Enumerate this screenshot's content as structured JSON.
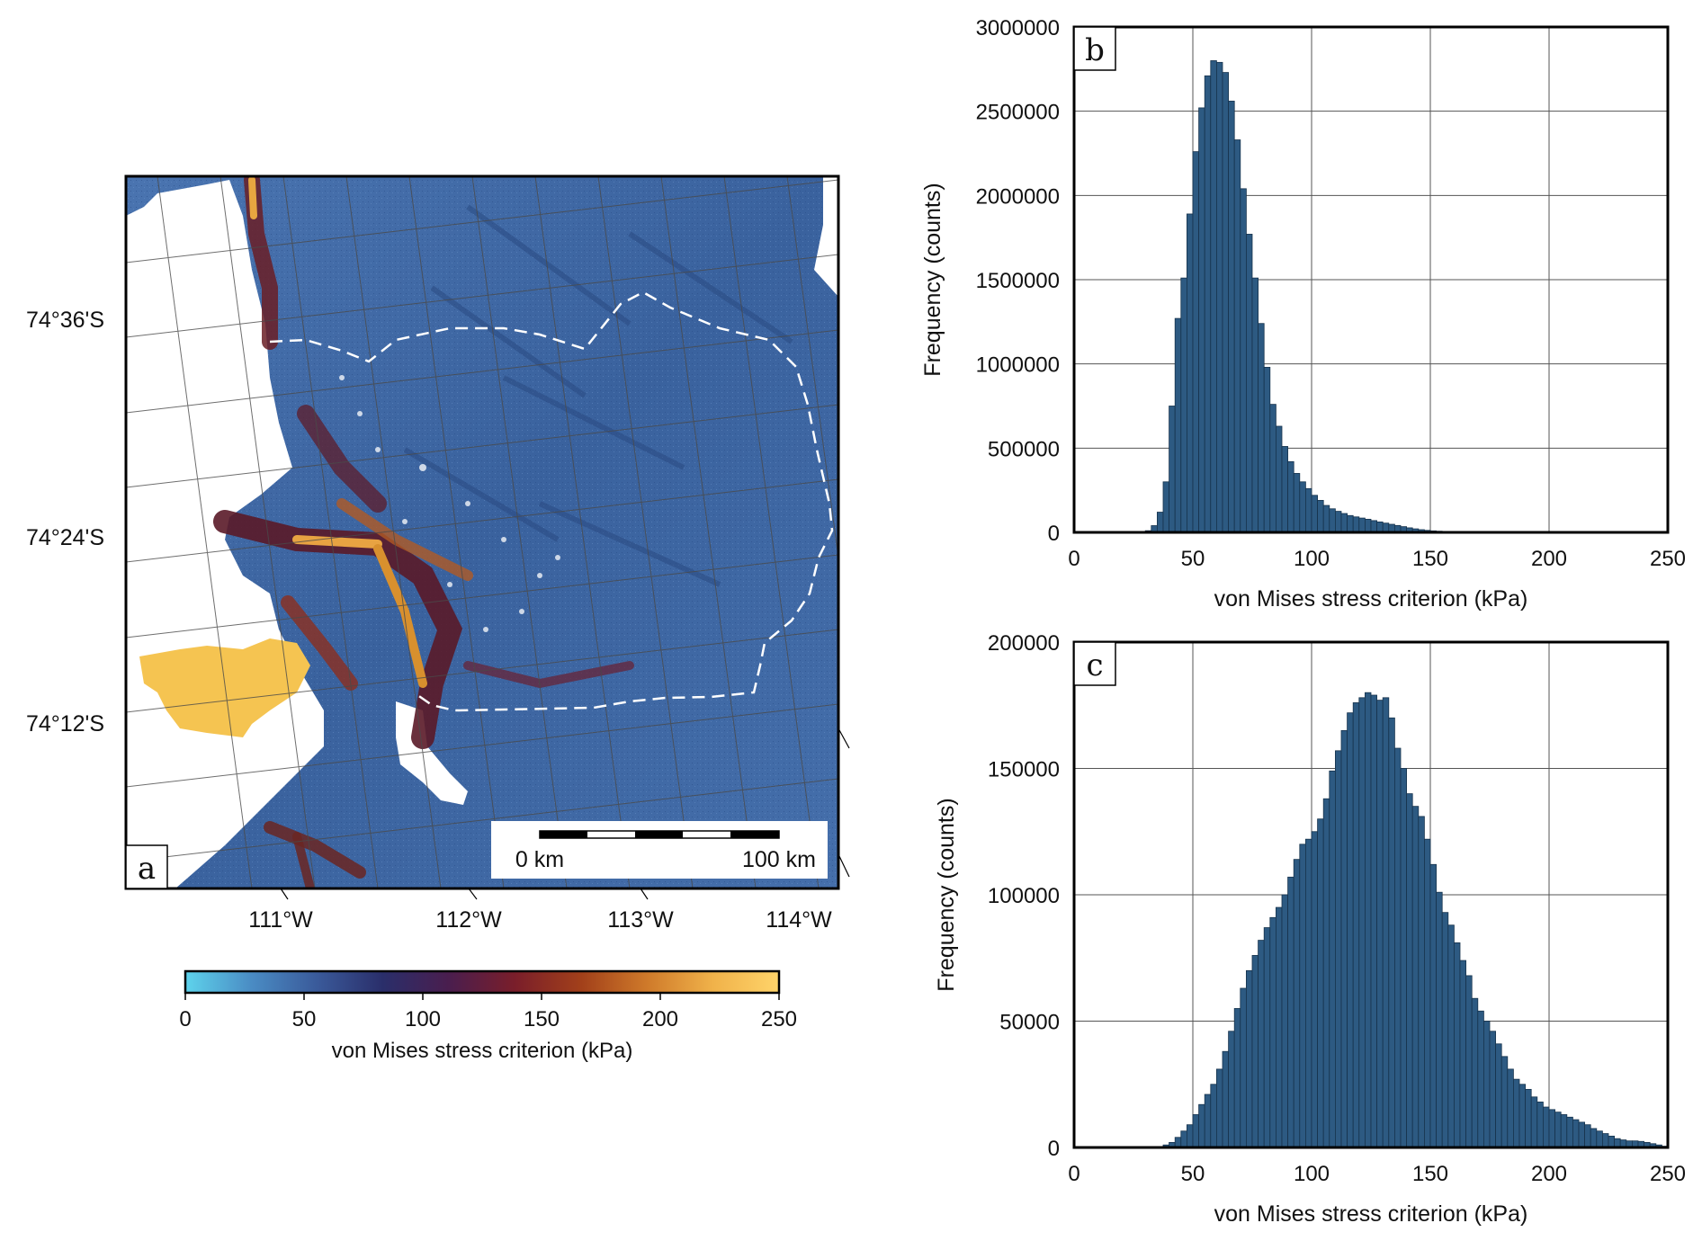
{
  "panels": {
    "a": "a",
    "b": "b",
    "c": "c"
  },
  "map": {
    "lat_labels": [
      "74°36'S",
      "74°24'S",
      "74°12'S"
    ],
    "lon_labels": [
      "111°W",
      "112°W",
      "113°W",
      "114°W"
    ],
    "scalebar": {
      "start": "0 km",
      "end": "100 km"
    },
    "colorbar": {
      "label": "von Mises stress criterion (kPa)",
      "ticks": [
        "0",
        "50",
        "100",
        "150",
        "200",
        "250"
      ],
      "colors": [
        "#5ed3ec",
        "#4a8cc4",
        "#3a5a9a",
        "#2a2e6a",
        "#4a1e4e",
        "#7a1e2a",
        "#a2401a",
        "#cf7a2a",
        "#f0b24a",
        "#ffd46a"
      ]
    }
  },
  "colors": {
    "bar": "#2d5a82",
    "bar_edge": "#16324c",
    "grid": "#555555",
    "ice": "#3f6aa6"
  },
  "chart_data": [
    {
      "type": "bar",
      "panel": "b",
      "xlabel": "von Mises stress criterion (kPa)",
      "ylabel": "Frequency (counts)",
      "xlim": [
        0,
        250
      ],
      "ylim": [
        0,
        3000000
      ],
      "xticks": [
        "0",
        "50",
        "100",
        "150",
        "200",
        "250"
      ],
      "yticks": [
        "0",
        "500000",
        "1000000",
        "1500000",
        "2000000",
        "2500000",
        "3000000"
      ],
      "bin_width": 2.5,
      "x": [
        30,
        32.5,
        35,
        37.5,
        40,
        42.5,
        45,
        47.5,
        50,
        52.5,
        55,
        57.5,
        60,
        62.5,
        65,
        67.5,
        70,
        72.5,
        75,
        77.5,
        80,
        82.5,
        85,
        87.5,
        90,
        92.5,
        95,
        97.5,
        100,
        102.5,
        105,
        107.5,
        110,
        112.5,
        115,
        117.5,
        120,
        122.5,
        125,
        127.5,
        130,
        132.5,
        135,
        137.5,
        140,
        142.5,
        145,
        147.5,
        150,
        152.5,
        155,
        157.5,
        160,
        162.5,
        165,
        167.5,
        170
      ],
      "values": [
        10000,
        40000,
        120000,
        300000,
        750000,
        1270000,
        1510000,
        1890000,
        2260000,
        2520000,
        2710000,
        2800000,
        2790000,
        2730000,
        2560000,
        2330000,
        2040000,
        1770000,
        1510000,
        1240000,
        980000,
        760000,
        630000,
        510000,
        420000,
        350000,
        300000,
        260000,
        220000,
        190000,
        160000,
        140000,
        125000,
        112000,
        100000,
        92000,
        85000,
        78000,
        70000,
        62000,
        55000,
        48000,
        41000,
        34000,
        27000,
        21000,
        16000,
        12000,
        9000,
        7000,
        5000,
        4000,
        3000,
        2000,
        1500,
        1000,
        500
      ]
    },
    {
      "type": "bar",
      "panel": "c",
      "xlabel": "von Mises stress criterion (kPa)",
      "ylabel": "Frequency (counts)",
      "xlim": [
        0,
        250
      ],
      "ylim": [
        0,
        200000
      ],
      "xticks": [
        "0",
        "50",
        "100",
        "150",
        "200",
        "250"
      ],
      "yticks": [
        "0",
        "50000",
        "100000",
        "150000",
        "200000"
      ],
      "bin_width": 2.5,
      "x": [
        37.5,
        40,
        42.5,
        45,
        47.5,
        50,
        52.5,
        55,
        57.5,
        60,
        62.5,
        65,
        67.5,
        70,
        72.5,
        75,
        77.5,
        80,
        82.5,
        85,
        87.5,
        90,
        92.5,
        95,
        97.5,
        100,
        102.5,
        105,
        107.5,
        110,
        112.5,
        115,
        117.5,
        120,
        122.5,
        125,
        127.5,
        130,
        132.5,
        135,
        137.5,
        140,
        142.5,
        145,
        147.5,
        150,
        152.5,
        155,
        157.5,
        160,
        162.5,
        165,
        167.5,
        170,
        172.5,
        175,
        177.5,
        180,
        182.5,
        185,
        187.5,
        190,
        192.5,
        195,
        197.5,
        200,
        202.5,
        205,
        207.5,
        210,
        212.5,
        215,
        217.5,
        220,
        222.5,
        225,
        227.5,
        230,
        232.5,
        235,
        237.5,
        240,
        242.5,
        245,
        247.5
      ],
      "values": [
        1000,
        2000,
        4000,
        6500,
        9000,
        13000,
        17000,
        21000,
        25000,
        31000,
        38000,
        46000,
        55000,
        63000,
        70000,
        76000,
        82000,
        87000,
        91000,
        95000,
        100000,
        107000,
        114000,
        120000,
        122000,
        125000,
        130000,
        138000,
        149000,
        157000,
        165000,
        172000,
        176000,
        178000,
        180000,
        179000,
        177000,
        178000,
        170000,
        158000,
        150000,
        140000,
        135000,
        131000,
        122000,
        112000,
        101000,
        93000,
        88000,
        81000,
        74000,
        68000,
        59000,
        54000,
        50000,
        46000,
        41000,
        36000,
        31000,
        27000,
        25000,
        23000,
        20000,
        18000,
        16000,
        15000,
        14000,
        13000,
        12000,
        11000,
        10000,
        9000,
        7500,
        6500,
        5500,
        4500,
        3500,
        3000,
        2600,
        2600,
        2400,
        2000,
        1500,
        1000,
        500
      ]
    }
  ]
}
